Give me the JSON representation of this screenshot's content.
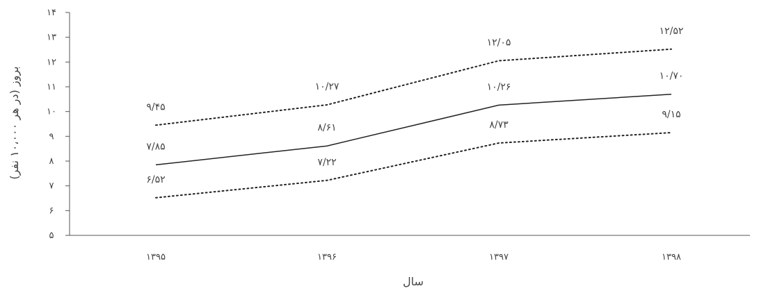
{
  "chart_data": {
    "type": "line",
    "xlabel": "سال",
    "ylabel": "بروز (در هر ۱۰،۰۰۰ نفر)",
    "categories": [
      "۱۳۹۵",
      "۱۳۹۶",
      "۱۳۹۷",
      "۱۳۹۸"
    ],
    "ylim": [
      5,
      14
    ],
    "y_ticks": [
      5,
      6,
      7,
      8,
      9,
      10,
      11,
      12,
      13,
      14
    ],
    "y_tick_labels": [
      "۵",
      "۶",
      "۷",
      "۸",
      "۹",
      "۱۰",
      "۱۱",
      "۱۲",
      "۱۳",
      "۱۴"
    ],
    "grid": false,
    "series": [
      {
        "style": "dotted",
        "color": "#222222",
        "values": [
          9.45,
          10.27,
          12.05,
          12.52
        ],
        "labels": [
          "۹/۴۵",
          "۱۰/۲۷",
          "۱۲/۰۵",
          "۱۲/۵۲"
        ]
      },
      {
        "style": "solid",
        "color": "#222222",
        "values": [
          7.85,
          8.61,
          10.26,
          10.7
        ],
        "labels": [
          "۷/۸۵",
          "۸/۶۱",
          "۱۰/۲۶",
          "۱۰/۷۰"
        ]
      },
      {
        "style": "dotted",
        "color": "#222222",
        "values": [
          6.52,
          7.22,
          8.73,
          9.15
        ],
        "labels": [
          "۶/۵۲",
          "۷/۲۲",
          "۸/۷۳",
          "۹/۱۵"
        ]
      }
    ]
  }
}
